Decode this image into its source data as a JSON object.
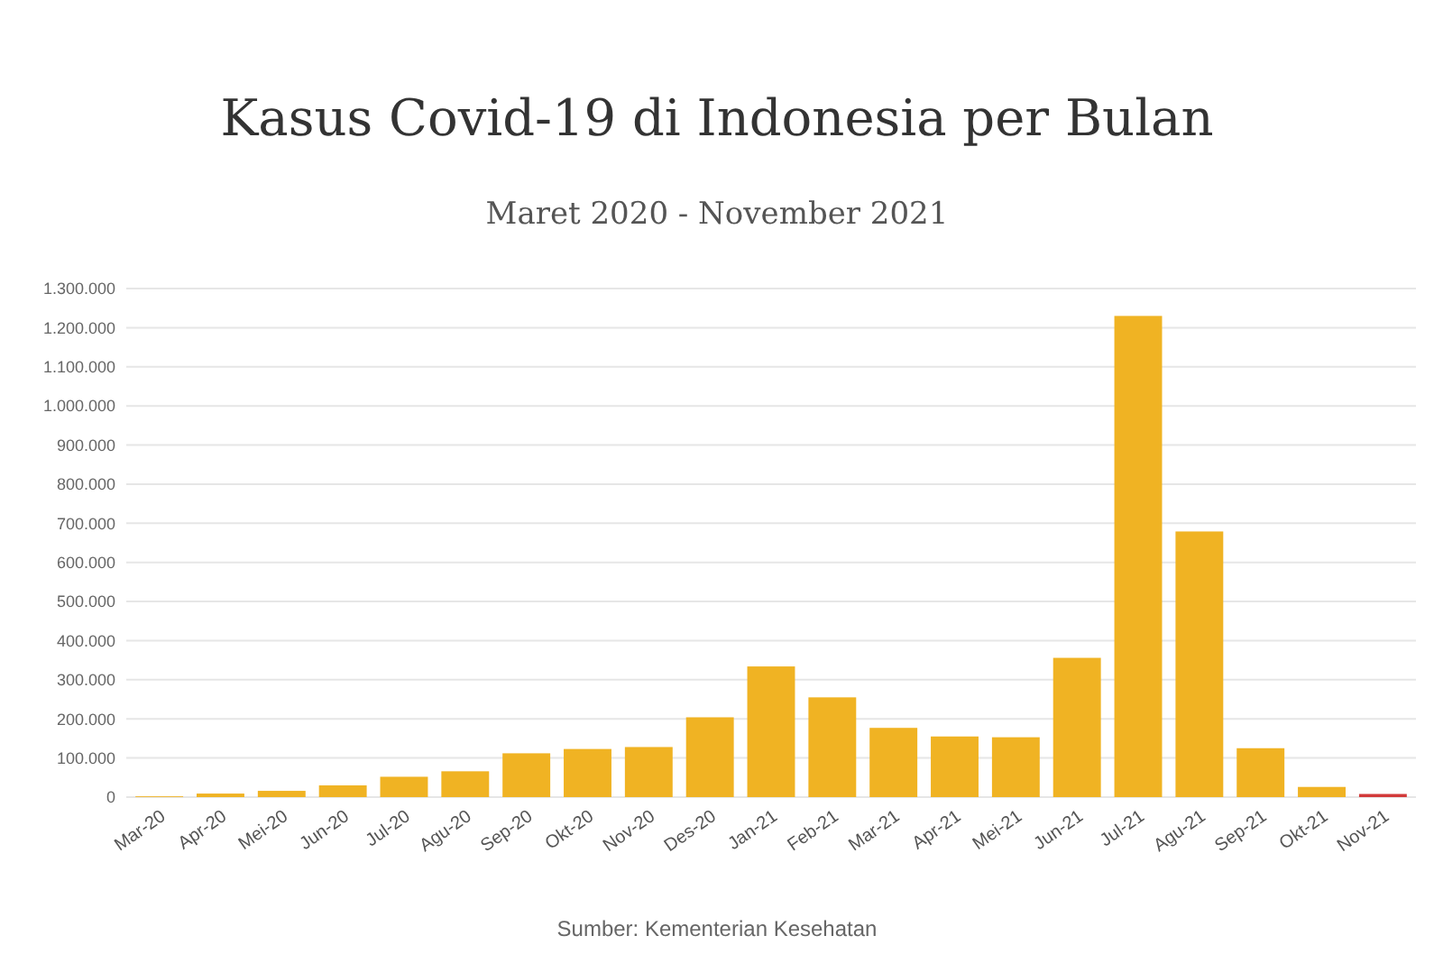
{
  "chart_data": {
    "type": "bar",
    "title": "Kasus Covid-19 di Indonesia per Bulan",
    "subtitle": "Maret 2020 - November 2021",
    "categories": [
      "Mar-20",
      "Apr-20",
      "Mei-20",
      "Jun-20",
      "Jul-20",
      "Agu-20",
      "Sep-20",
      "Okt-20",
      "Nov-20",
      "Des-20",
      "Jan-21",
      "Feb-21",
      "Mar-21",
      "Apr-21",
      "Mei-21",
      "Jun-21",
      "Jul-21",
      "Agu-21",
      "Sep-21",
      "Okt-21",
      "Nov-21"
    ],
    "values": [
      2000,
      9000,
      16000,
      30000,
      52000,
      66000,
      112000,
      123000,
      128000,
      204000,
      334000,
      255000,
      177000,
      155000,
      153000,
      356000,
      1230000,
      679000,
      125000,
      26000,
      8000
    ],
    "colors": [
      "#f0b323",
      "#f0b323",
      "#f0b323",
      "#f0b323",
      "#f0b323",
      "#f0b323",
      "#f0b323",
      "#f0b323",
      "#f0b323",
      "#f0b323",
      "#f0b323",
      "#f0b323",
      "#f0b323",
      "#f0b323",
      "#f0b323",
      "#f0b323",
      "#f0b323",
      "#f0b323",
      "#f0b323",
      "#f0b323",
      "#d23a3a"
    ],
    "ylim": [
      0,
      1300000
    ],
    "yticks": [
      0,
      {
        "value": 100000,
        "label": "100.000"
      },
      {
        "value": 200000,
        "label": "200.000"
      },
      {
        "value": 300000,
        "label": "300.000"
      },
      {
        "value": 400000,
        "label": "400.000"
      },
      {
        "value": 500000,
        "label": "500.000"
      },
      {
        "value": 600000,
        "label": "600.000"
      },
      {
        "value": 700000,
        "label": "700.000"
      },
      {
        "value": 800000,
        "label": "800.000"
      },
      {
        "value": 900000,
        "label": "900.000"
      },
      {
        "value": 1000000,
        "label": "1.000.000"
      },
      {
        "value": 1100000,
        "label": "1.100.000"
      },
      {
        "value": 1200000,
        "label": "1.200.000"
      },
      {
        "value": 1300000,
        "label": "1.300.000"
      }
    ],
    "grid": "y",
    "annotations": [
      "Sumber: Kementerian Kesehatan"
    ]
  }
}
